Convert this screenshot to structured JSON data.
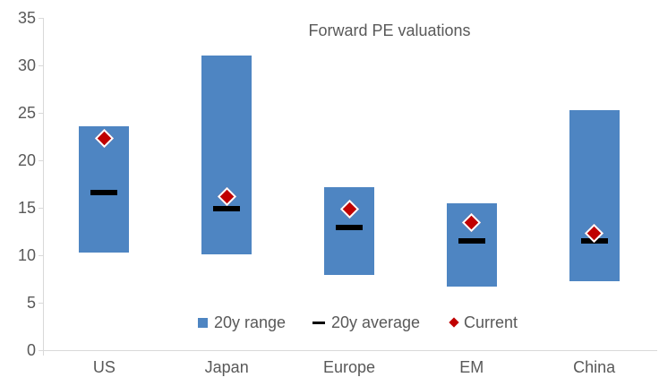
{
  "chart_data": {
    "type": "bar",
    "subtype": "floating-range-bar-with-markers",
    "title": "Forward PE valuations",
    "categories": [
      "US",
      "Japan",
      "Europe",
      "EM",
      "China"
    ],
    "series": [
      {
        "name": "20y range",
        "type": "floating-bar",
        "color": "#4e85c2",
        "low": [
          10.3,
          10.1,
          7.9,
          6.7,
          7.3
        ],
        "high": [
          23.6,
          31.0,
          17.2,
          15.5,
          25.3
        ]
      },
      {
        "name": "20y average",
        "type": "dash-marker",
        "color": "#000000",
        "values": [
          16.6,
          14.9,
          12.9,
          11.5,
          11.5
        ]
      },
      {
        "name": "Current",
        "type": "diamond-marker",
        "color": "#c00000",
        "marker_outline": "#ffffff",
        "values": [
          22.3,
          16.2,
          14.9,
          13.4,
          12.3
        ]
      }
    ],
    "y_axis": {
      "min": 0,
      "max": 35,
      "step": 5,
      "tick_labels": [
        "0",
        "5",
        "10",
        "15",
        "20",
        "25",
        "30",
        "35"
      ]
    },
    "x_axis": {
      "labels": [
        "US",
        "Japan",
        "Europe",
        "EM",
        "China"
      ]
    },
    "legend": {
      "position": "bottom",
      "items": [
        "20y range",
        "20y average",
        "Current"
      ]
    },
    "grid": false,
    "colors": {
      "text": "#595959",
      "axis_line": "#d9d9d9"
    }
  }
}
